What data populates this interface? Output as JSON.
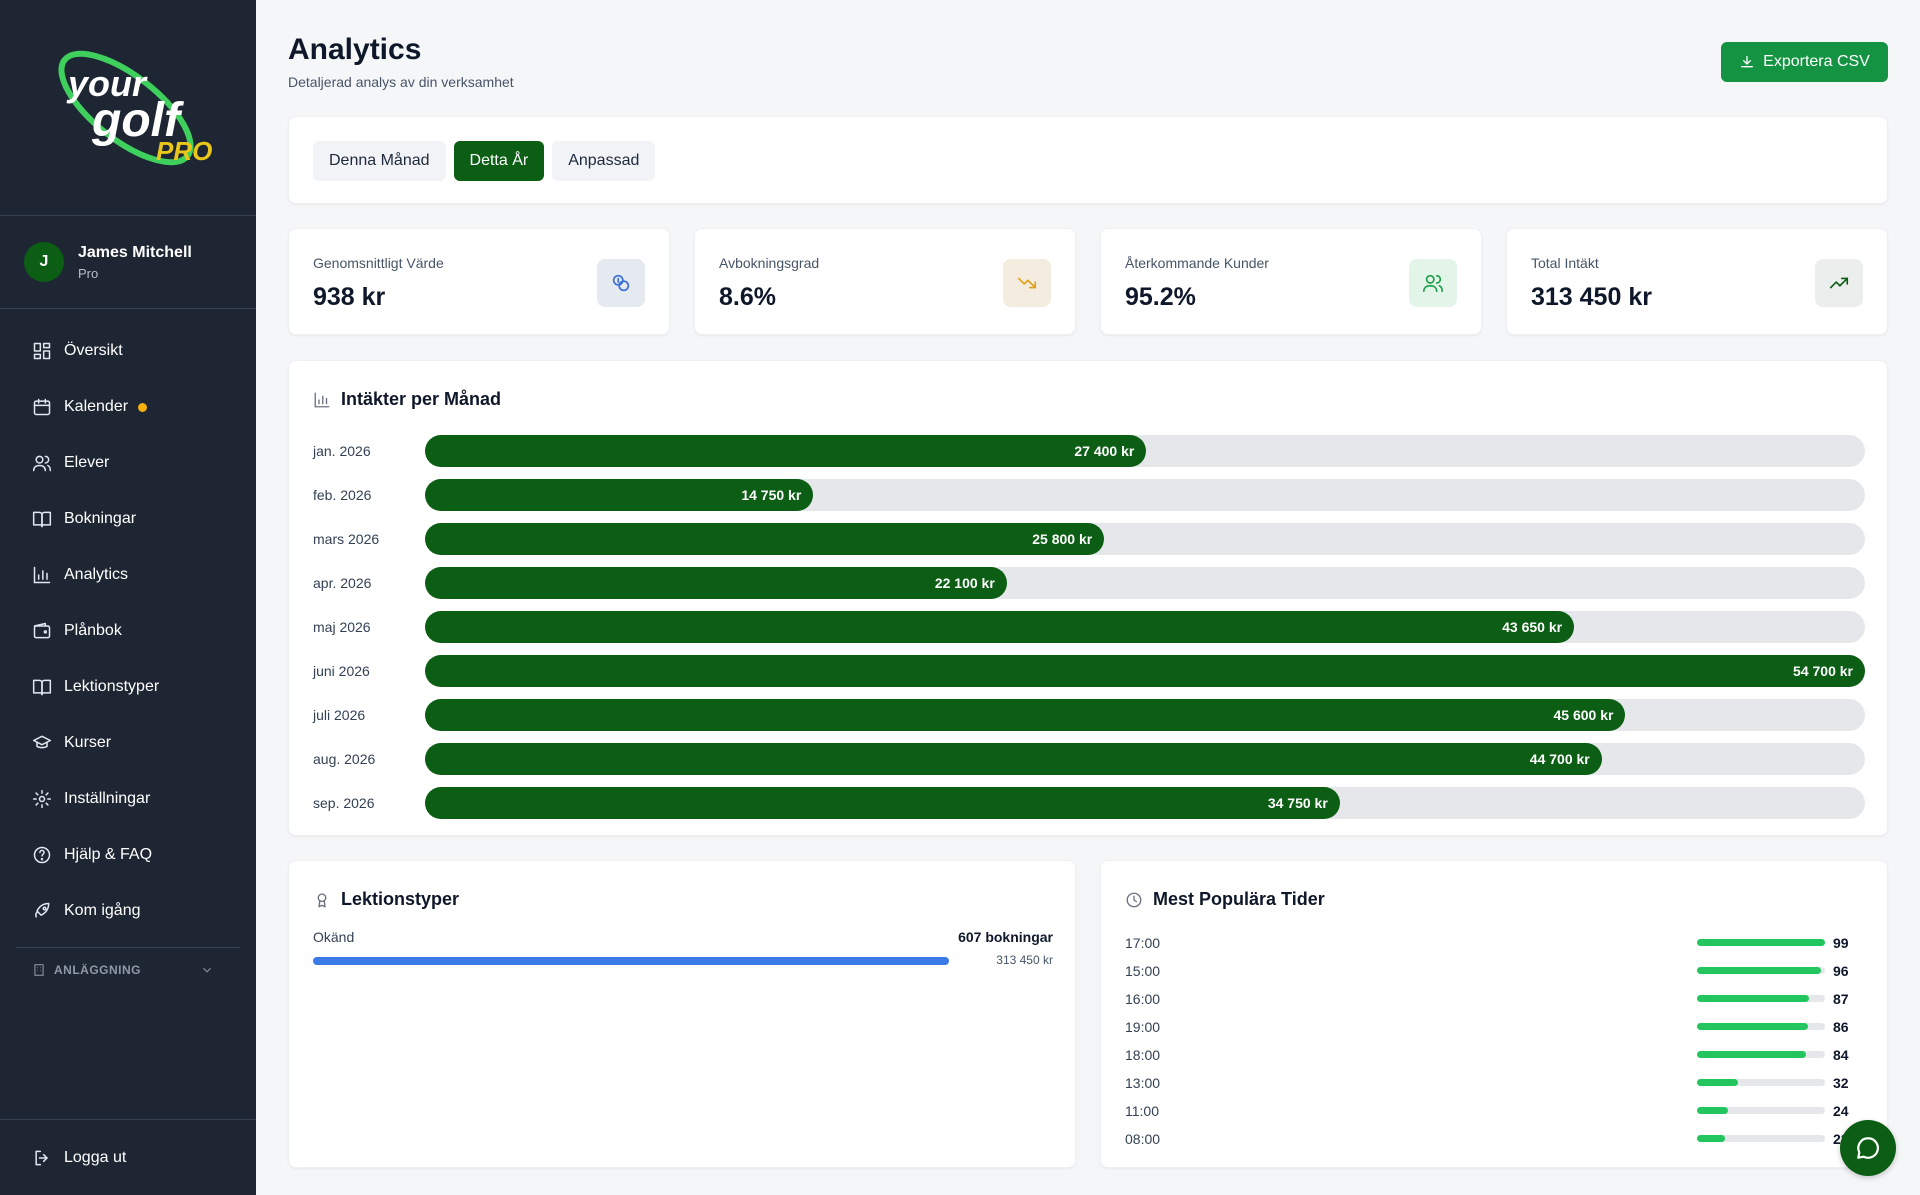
{
  "brand": {
    "logo_text_1": "your",
    "logo_text_2": "golf",
    "logo_text_3": "PRO"
  },
  "user": {
    "initial": "J",
    "name": "James Mitchell",
    "role": "Pro"
  },
  "nav": [
    {
      "label": "Översikt",
      "icon": "grid-icon"
    },
    {
      "label": "Kalender",
      "icon": "calendar-icon"
    },
    {
      "label": "Elever",
      "icon": "users-icon"
    },
    {
      "label": "Bokningar",
      "icon": "book-icon"
    },
    {
      "label": "Analytics",
      "icon": "bar-chart-icon"
    },
    {
      "label": "Plånbok",
      "icon": "wallet-icon"
    },
    {
      "label": "Lektionstyper",
      "icon": "book-open-icon"
    },
    {
      "label": "Kurser",
      "icon": "graduation-cap-icon"
    },
    {
      "label": "Inställningar",
      "icon": "gear-icon"
    },
    {
      "label": "Hjälp & FAQ",
      "icon": "help-circle-icon"
    },
    {
      "label": "Kom igång",
      "icon": "rocket-icon"
    }
  ],
  "facility": {
    "label": "ANLÄGGNING"
  },
  "logout": {
    "label": "Logga ut"
  },
  "header": {
    "title": "Analytics",
    "subtitle": "Detaljerad analys av din verksamhet",
    "export_label": "Exportera CSV"
  },
  "filters": {
    "tabs": [
      "Denna Månad",
      "Detta År",
      "Anpassad"
    ],
    "active": "Detta År"
  },
  "stats": [
    {
      "label": "Genomsnittligt Värde",
      "value": "938 kr",
      "icon": "coins-icon",
      "icon_bg": "#e5e9f0",
      "icon_color": "#3b6fd8"
    },
    {
      "label": "Avbokningsgrad",
      "value": "8.6%",
      "icon": "trending-down-icon",
      "icon_bg": "#f3ecdf",
      "icon_color": "#e0a11a"
    },
    {
      "label": "Återkommande Kunder",
      "value": "95.2%",
      "icon": "users-icon",
      "icon_bg": "#e2f5e8",
      "icon_color": "#1f9d4a"
    },
    {
      "label": "Total Intäkt",
      "value": "313 450 kr",
      "icon": "trending-up-icon",
      "icon_bg": "#eceeed",
      "icon_color": "#0b5e14"
    }
  ],
  "revenue": {
    "title": "Intäkter per Månad",
    "icon": "bar-chart-icon"
  },
  "chart_data": {
    "type": "bar",
    "title": "Intäkter per Månad",
    "categories": [
      "jan. 2026",
      "feb. 2026",
      "mars 2026",
      "apr. 2026",
      "maj 2026",
      "juni 2026",
      "juli 2026",
      "aug. 2026",
      "sep. 2026"
    ],
    "values": [
      27400,
      14750,
      25800,
      22100,
      43650,
      54700,
      45600,
      44700,
      34750
    ],
    "value_labels": [
      "27 400 kr",
      "14 750 kr",
      "25 800 kr",
      "22 100 kr",
      "43 650 kr",
      "54 700 kr",
      "45 600 kr",
      "44 700 kr",
      "34 750 kr"
    ],
    "orientation": "horizontal",
    "xlim": [
      0,
      54700
    ],
    "color": "#0b5e14"
  },
  "lesson_types": {
    "title": "Lektionstyper",
    "icon": "award-icon",
    "items": [
      {
        "name": "Okänd",
        "count": "607 bokningar",
        "amount": "313 450 kr",
        "share": 1.0
      }
    ]
  },
  "popular_times": {
    "title": "Mest Populära Tider",
    "icon": "clock-icon",
    "max": 99,
    "items": [
      {
        "time": "17:00",
        "count": 99
      },
      {
        "time": "15:00",
        "count": 96
      },
      {
        "time": "16:00",
        "count": 87
      },
      {
        "time": "19:00",
        "count": 86
      },
      {
        "time": "18:00",
        "count": 84
      },
      {
        "time": "13:00",
        "count": 32
      },
      {
        "time": "11:00",
        "count": 24
      },
      {
        "time": "08:00",
        "count": 22
      }
    ]
  },
  "colors": {
    "sidebar": "#1e2633",
    "primary": "#0b5e14",
    "accent": "#149442",
    "blue": "#3b7be8",
    "green": "#22c55e"
  }
}
